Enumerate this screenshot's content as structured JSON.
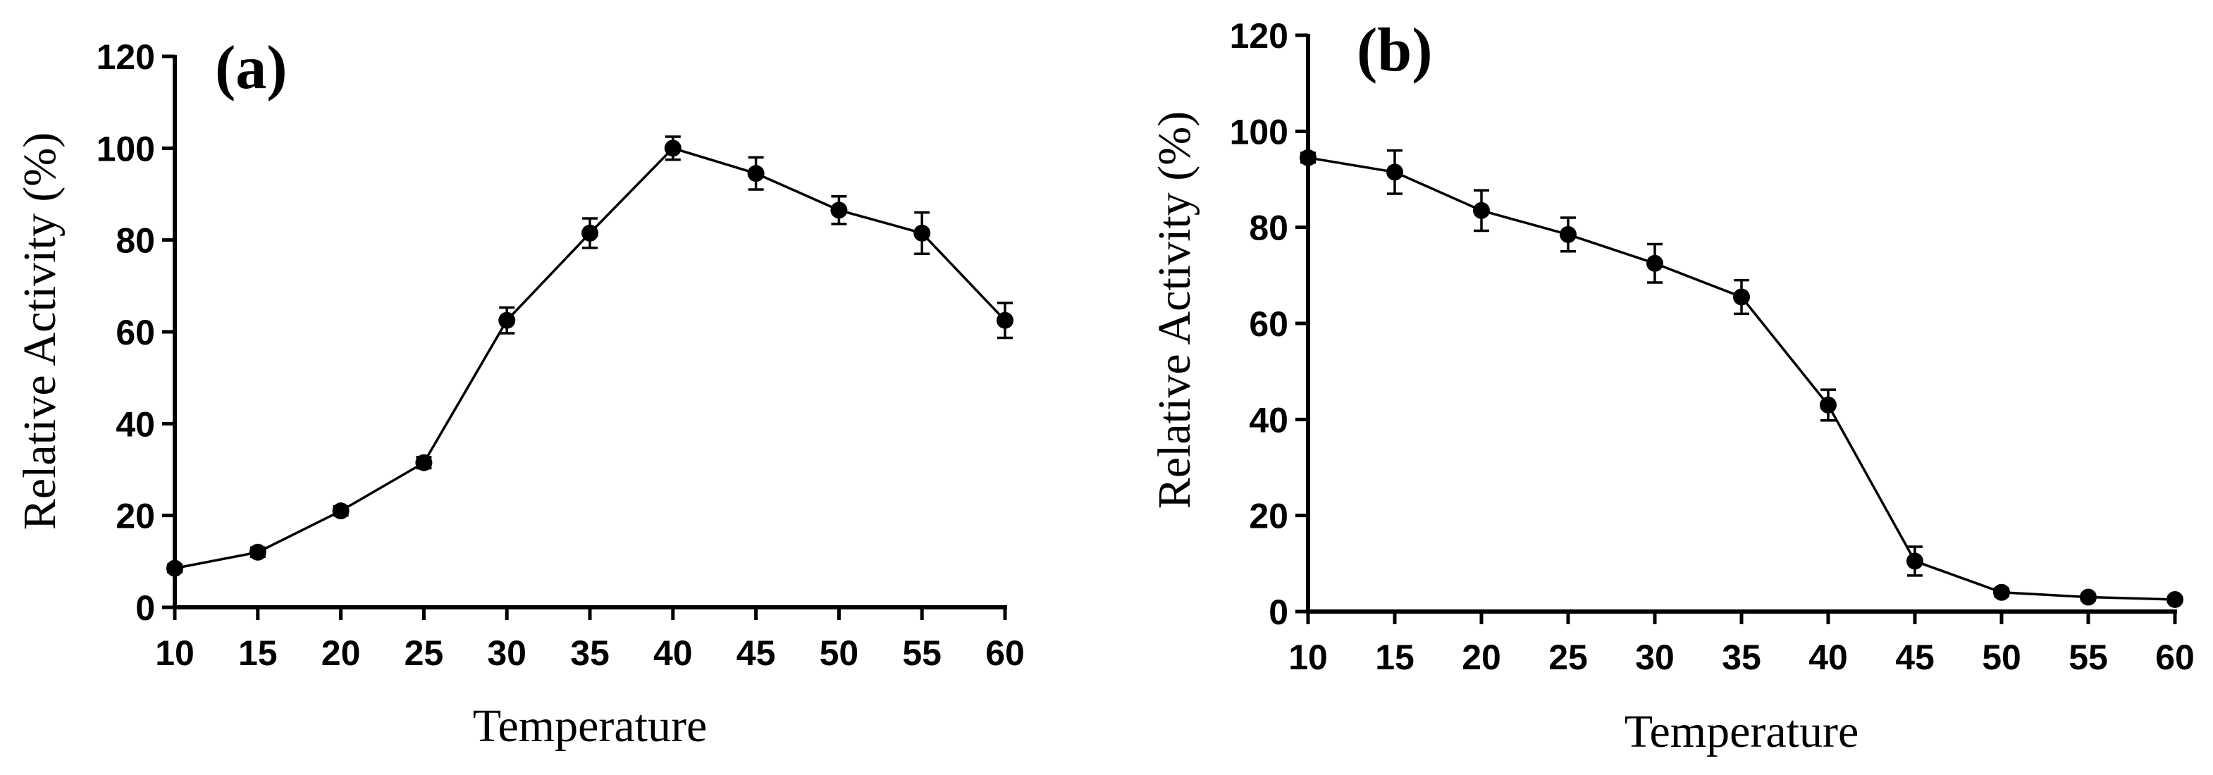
{
  "chart_data": [
    {
      "type": "line",
      "panel_label": "(a)",
      "title": "",
      "xlabel": "Temperature",
      "ylabel": "Relative Activity (%)",
      "xlim": [
        10,
        60
      ],
      "ylim": [
        0,
        120
      ],
      "xticks": [
        10,
        15,
        20,
        25,
        30,
        35,
        40,
        45,
        50,
        55,
        60
      ],
      "yticks": [
        0,
        20,
        40,
        60,
        80,
        100,
        120
      ],
      "grid": false,
      "series": [
        {
          "name": "Relative Activity",
          "x": [
            10,
            15,
            20,
            25,
            30,
            35,
            40,
            45,
            50,
            55,
            60
          ],
          "y": [
            8.5,
            12,
            21,
            31.5,
            62.5,
            81.5,
            100,
            94.5,
            86.5,
            81.5,
            62.5
          ],
          "error": [
            0.8,
            1.0,
            1.0,
            1.2,
            2.8,
            3.2,
            2.5,
            3.5,
            3.0,
            4.5,
            3.8
          ]
        }
      ]
    },
    {
      "type": "line",
      "panel_label": "(b)",
      "title": "",
      "xlabel": "Temperature",
      "ylabel": "Relative Activity (%)",
      "xlim": [
        10,
        60
      ],
      "ylim": [
        0,
        120
      ],
      "xticks": [
        10,
        15,
        20,
        25,
        30,
        35,
        40,
        45,
        50,
        55,
        60
      ],
      "yticks": [
        0,
        20,
        40,
        60,
        80,
        100,
        120
      ],
      "grid": false,
      "series": [
        {
          "name": "Relative Activity",
          "x": [
            10,
            15,
            20,
            25,
            30,
            35,
            40,
            45,
            50,
            55,
            60
          ],
          "y": [
            94.5,
            91.5,
            83.5,
            78.5,
            72.5,
            65.5,
            43,
            10.5,
            4,
            3,
            2.5
          ],
          "error": [
            1.0,
            4.5,
            4.2,
            3.5,
            4.0,
            3.5,
            3.2,
            3.0,
            0.8,
            0.6,
            0.5
          ]
        }
      ]
    }
  ]
}
